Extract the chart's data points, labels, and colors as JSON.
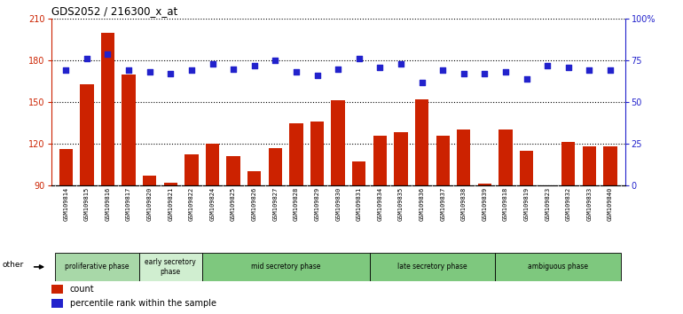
{
  "title": "GDS2052 / 216300_x_at",
  "samples": [
    "GSM109814",
    "GSM109815",
    "GSM109816",
    "GSM109817",
    "GSM109820",
    "GSM109821",
    "GSM109822",
    "GSM109824",
    "GSM109825",
    "GSM109826",
    "GSM109827",
    "GSM109828",
    "GSM109829",
    "GSM109830",
    "GSM109831",
    "GSM109834",
    "GSM109835",
    "GSM109836",
    "GSM109837",
    "GSM109838",
    "GSM109839",
    "GSM109818",
    "GSM109819",
    "GSM109823",
    "GSM109832",
    "GSM109833",
    "GSM109840"
  ],
  "counts": [
    116,
    163,
    200,
    170,
    97,
    92,
    112,
    120,
    111,
    100,
    117,
    135,
    136,
    151,
    107,
    126,
    128,
    152,
    126,
    130,
    91,
    130,
    115,
    86,
    121,
    118,
    118
  ],
  "percentiles": [
    69,
    76,
    79,
    69,
    68,
    67,
    69,
    73,
    70,
    72,
    75,
    68,
    66,
    70,
    76,
    71,
    73,
    62,
    69,
    67,
    67,
    68,
    64,
    72,
    71,
    69,
    69
  ],
  "ylim_left": [
    90,
    210
  ],
  "ylim_right": [
    0,
    100
  ],
  "yticks_left": [
    90,
    120,
    150,
    180,
    210
  ],
  "yticks_right": [
    0,
    25,
    50,
    75,
    100
  ],
  "bar_color": "#cc2200",
  "dot_color": "#2222cc",
  "phases": [
    {
      "label": "proliferative phase",
      "start": 0,
      "end": 4,
      "color": "#a8d8a8"
    },
    {
      "label": "early secretory\nphase",
      "start": 4,
      "end": 7,
      "color": "#d0eed0"
    },
    {
      "label": "mid secretory phase",
      "start": 7,
      "end": 15,
      "color": "#7ec87e"
    },
    {
      "label": "late secretory phase",
      "start": 15,
      "end": 21,
      "color": "#7ec87e"
    },
    {
      "label": "ambiguous phase",
      "start": 21,
      "end": 27,
      "color": "#7ec87e"
    }
  ],
  "tick_bg_color": "#c8c8c8",
  "legend_count_color": "#cc2200",
  "legend_pct_color": "#2222cc"
}
